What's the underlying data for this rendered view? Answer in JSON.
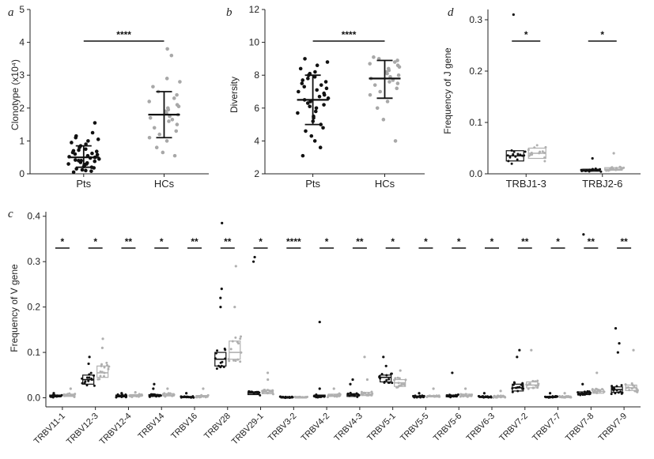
{
  "chart_data": [
    {
      "type": "scatter",
      "panel": "a",
      "ylabel": "Clonotype (x10⁴)",
      "ylim": [
        0,
        5
      ],
      "yticks": [
        "0",
        "1",
        "2",
        "3",
        "4",
        "5"
      ],
      "categories": [
        "Pts",
        "HCs"
      ],
      "colors": [
        "#111111",
        "#a8a8a8"
      ],
      "summary": [
        {
          "mean": 0.5,
          "low": 0.2,
          "high": 0.85
        },
        {
          "mean": 1.8,
          "low": 1.1,
          "high": 2.5
        }
      ],
      "points": [
        [
          0.05,
          0.08,
          0.1,
          0.12,
          0.15,
          0.18,
          0.2,
          0.22,
          0.25,
          0.28,
          0.3,
          0.3,
          0.33,
          0.35,
          0.38,
          0.4,
          0.4,
          0.42,
          0.45,
          0.48,
          0.5,
          0.5,
          0.52,
          0.55,
          0.58,
          0.6,
          0.62,
          0.65,
          0.68,
          0.7,
          0.72,
          0.75,
          0.8,
          0.85,
          0.9,
          0.95,
          1.0,
          1.05,
          1.1,
          1.15,
          1.25,
          1.55
        ],
        [
          0.55,
          0.65,
          0.8,
          1.0,
          1.1,
          1.2,
          1.3,
          1.4,
          1.5,
          1.6,
          1.65,
          1.7,
          1.75,
          1.8,
          1.85,
          1.9,
          1.95,
          2.0,
          2.05,
          2.1,
          2.2,
          2.3,
          2.4,
          2.5,
          2.65,
          2.8,
          2.9,
          3.6,
          3.8
        ]
      ],
      "significance": "****"
    },
    {
      "type": "scatter",
      "panel": "b",
      "ylabel": "Diversity",
      "ylim": [
        2,
        12
      ],
      "yticks": [
        "2",
        "4",
        "6",
        "8",
        "10",
        "12"
      ],
      "categories": [
        "Pts",
        "HCs"
      ],
      "colors": [
        "#111111",
        "#a8a8a8"
      ],
      "summary": [
        {
          "mean": 6.5,
          "low": 5.0,
          "high": 8.0
        },
        {
          "mean": 7.8,
          "low": 6.6,
          "high": 8.9
        }
      ],
      "points": [
        [
          3.1,
          3.6,
          4.0,
          4.3,
          4.6,
          4.8,
          5.0,
          5.2,
          5.4,
          5.5,
          5.7,
          5.8,
          6.0,
          6.1,
          6.2,
          6.3,
          6.4,
          6.5,
          6.6,
          6.7,
          6.8,
          6.9,
          7.0,
          7.1,
          7.2,
          7.3,
          7.4,
          7.5,
          7.6,
          7.7,
          7.8,
          7.9,
          8.0,
          8.1,
          8.2,
          8.4,
          8.6,
          8.8,
          9.0
        ],
        [
          4.0,
          5.3,
          6.0,
          6.4,
          6.8,
          7.0,
          7.2,
          7.4,
          7.5,
          7.6,
          7.7,
          7.8,
          7.9,
          8.0,
          8.1,
          8.2,
          8.3,
          8.4,
          8.5,
          8.6,
          8.7,
          8.8,
          8.9,
          9.0,
          9.1
        ]
      ],
      "significance": "****"
    },
    {
      "type": "box",
      "panel": "d",
      "ylabel": "Frequency of J gene",
      "ylim": [
        0,
        0.32
      ],
      "yticks": [
        "0.0",
        "0.1",
        "0.2",
        "0.3"
      ],
      "categories": [
        "TRBJ1-3",
        "TRBJ2-6"
      ],
      "colors": [
        "#111111",
        "#b0b0b0"
      ],
      "boxes": [
        [
          {
            "q1": 0.025,
            "median": 0.035,
            "q3": 0.045
          },
          {
            "q1": 0.03,
            "median": 0.04,
            "q3": 0.05
          }
        ],
        [
          {
            "q1": 0.005,
            "median": 0.007,
            "q3": 0.009
          },
          {
            "q1": 0.007,
            "median": 0.009,
            "q3": 0.012
          }
        ]
      ],
      "outliers": [
        [
          [
            0.31
          ],
          []
        ],
        [
          [
            0.03
          ],
          [
            0.04
          ]
        ]
      ],
      "significance": [
        "*",
        "*"
      ]
    },
    {
      "type": "box",
      "panel": "c",
      "ylabel": "Frequency of V gene",
      "ylim": [
        -0.02,
        0.41
      ],
      "yticks": [
        "0.0",
        "0.1",
        "0.2",
        "0.3",
        "0.4"
      ],
      "categories": [
        "TRBV11-1",
        "TRBV12-3",
        "TRBV12-4",
        "TRBV14",
        "TRBV16",
        "TRBV28",
        "TRBV29-1",
        "TRBV3-2",
        "TRBV4-2",
        "TRBV4-3",
        "TRBV5-1",
        "TRBV5-5",
        "TRBV5-6",
        "TRBV6-3",
        "TRBV7-2",
        "TRBV7-7",
        "TRBV7-8",
        "TRBV7-9"
      ],
      "significance": [
        "*",
        "*",
        "**",
        "*",
        "**",
        "**",
        "*",
        "****",
        "*",
        "**",
        "*",
        "*",
        "*",
        "*",
        "**",
        "*",
        "**",
        "**"
      ],
      "colors": [
        "#111111",
        "#b0b0b0"
      ],
      "boxes": [
        [
          {
            "q1": 0.002,
            "median": 0.004,
            "q3": 0.006
          },
          {
            "q1": 0.003,
            "median": 0.005,
            "q3": 0.008
          }
        ],
        [
          {
            "q1": 0.03,
            "median": 0.04,
            "q3": 0.05
          },
          {
            "q1": 0.045,
            "median": 0.055,
            "q3": 0.07
          }
        ],
        [
          {
            "q1": 0.002,
            "median": 0.004,
            "q3": 0.006
          },
          {
            "q1": 0.003,
            "median": 0.005,
            "q3": 0.007
          }
        ],
        [
          {
            "q1": 0.003,
            "median": 0.005,
            "q3": 0.007
          },
          {
            "q1": 0.004,
            "median": 0.006,
            "q3": 0.009
          }
        ],
        [
          {
            "q1": 0.001,
            "median": 0.002,
            "q3": 0.003
          },
          {
            "q1": 0.002,
            "median": 0.003,
            "q3": 0.005
          }
        ],
        [
          {
            "q1": 0.07,
            "median": 0.085,
            "q3": 0.1
          },
          {
            "q1": 0.085,
            "median": 0.1,
            "q3": 0.125
          }
        ],
        [
          {
            "q1": 0.007,
            "median": 0.01,
            "q3": 0.013
          },
          {
            "q1": 0.009,
            "median": 0.012,
            "q3": 0.016
          }
        ],
        [
          {
            "q1": 0.0,
            "median": 0.001,
            "q3": 0.002
          },
          {
            "q1": 0.001,
            "median": 0.001,
            "q3": 0.002
          }
        ],
        [
          {
            "q1": 0.002,
            "median": 0.004,
            "q3": 0.006
          },
          {
            "q1": 0.003,
            "median": 0.005,
            "q3": 0.008
          }
        ],
        [
          {
            "q1": 0.003,
            "median": 0.006,
            "q3": 0.009
          },
          {
            "q1": 0.005,
            "median": 0.008,
            "q3": 0.012
          }
        ],
        [
          {
            "q1": 0.035,
            "median": 0.045,
            "q3": 0.05
          },
          {
            "q1": 0.025,
            "median": 0.033,
            "q3": 0.04
          }
        ],
        [
          {
            "q1": 0.001,
            "median": 0.003,
            "q3": 0.004
          },
          {
            "q1": 0.002,
            "median": 0.003,
            "q3": 0.005
          }
        ],
        [
          {
            "q1": 0.002,
            "median": 0.004,
            "q3": 0.006
          },
          {
            "q1": 0.003,
            "median": 0.005,
            "q3": 0.008
          }
        ],
        [
          {
            "q1": 0.001,
            "median": 0.002,
            "q3": 0.003
          },
          {
            "q1": 0.001,
            "median": 0.002,
            "q3": 0.004
          }
        ],
        [
          {
            "q1": 0.015,
            "median": 0.022,
            "q3": 0.03
          },
          {
            "q1": 0.022,
            "median": 0.028,
            "q3": 0.035
          }
        ],
        [
          {
            "q1": 0.001,
            "median": 0.002,
            "q3": 0.003
          },
          {
            "q1": 0.001,
            "median": 0.002,
            "q3": 0.003
          }
        ],
        [
          {
            "q1": 0.007,
            "median": 0.01,
            "q3": 0.013
          },
          {
            "q1": 0.01,
            "median": 0.014,
            "q3": 0.018
          }
        ],
        [
          {
            "q1": 0.012,
            "median": 0.018,
            "q3": 0.024
          },
          {
            "q1": 0.016,
            "median": 0.022,
            "q3": 0.028
          }
        ]
      ],
      "outliers": [
        [
          [
            0.01
          ],
          [
            0.02
          ]
        ],
        [
          [
            0.09,
            0.075
          ],
          [
            0.13,
            0.11
          ]
        ],
        [
          [
            0.01
          ],
          [
            0.012
          ]
        ],
        [
          [
            0.03,
            0.02
          ],
          [
            0.02
          ]
        ],
        [
          [
            0.01
          ],
          [
            0.02
          ]
        ],
        [
          [
            0.385,
            0.24,
            0.22,
            0.2
          ],
          [
            0.29,
            0.2
          ]
        ],
        [
          [
            0.31,
            0.3
          ],
          [
            0.055,
            0.04
          ]
        ],
        [
          [],
          []
        ],
        [
          [
            0.167,
            0.02
          ],
          [
            0.02
          ]
        ],
        [
          [
            0.04,
            0.03
          ],
          [
            0.09,
            0.04
          ]
        ],
        [
          [
            0.09,
            0.07
          ],
          [
            0.06
          ]
        ],
        [
          [
            0.01
          ],
          [
            0.02
          ]
        ],
        [
          [
            0.055
          ],
          [
            0.02
          ]
        ],
        [
          [
            0.01
          ],
          [
            0.015
          ]
        ],
        [
          [
            0.105,
            0.09
          ],
          [
            0.105
          ]
        ],
        [
          [
            0.01
          ],
          [
            0.01
          ]
        ],
        [
          [
            0.36,
            0.03
          ],
          [
            0.055
          ]
        ],
        [
          [
            0.153,
            0.12,
            0.1
          ],
          [
            0.105
          ]
        ]
      ]
    }
  ]
}
